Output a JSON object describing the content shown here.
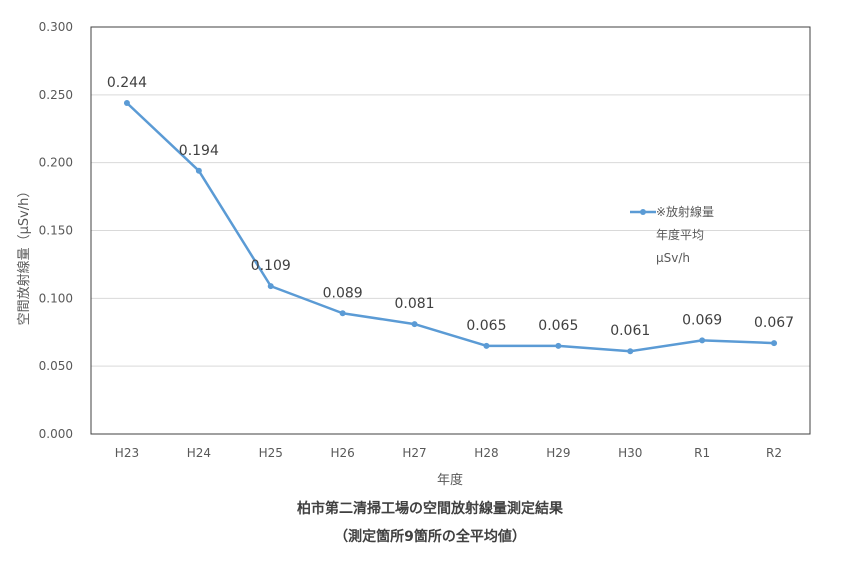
{
  "chart_data": {
    "type": "line",
    "title": "柏市第二清掃工場の空間放射線量測定結果",
    "subtitle": "（測定箇所9箇所の全平均値）",
    "xlabel": "年度",
    "ylabel": "空間放射線量（μSv/h）",
    "categories": [
      "H23",
      "H24",
      "H25",
      "H26",
      "H27",
      "H28",
      "H29",
      "H30",
      "R1",
      "R2"
    ],
    "series": [
      {
        "name_lines": [
          "※放射線量",
          "年度平均",
          "μSv/h"
        ],
        "values": [
          0.244,
          0.194,
          0.109,
          0.089,
          0.081,
          0.065,
          0.065,
          0.061,
          0.069,
          0.067
        ],
        "value_labels": [
          "0.244",
          "0.194",
          "0.109",
          "0.089",
          "0.081",
          "0.065",
          "0.065",
          "0.061",
          "0.069",
          "0.067"
        ],
        "color": "#5B9BD5"
      }
    ],
    "ylim": [
      0,
      0.3
    ],
    "yticks": [
      "0.000",
      "0.050",
      "0.100",
      "0.150",
      "0.200",
      "0.250",
      "0.300"
    ],
    "grid": true,
    "legend": "right"
  }
}
